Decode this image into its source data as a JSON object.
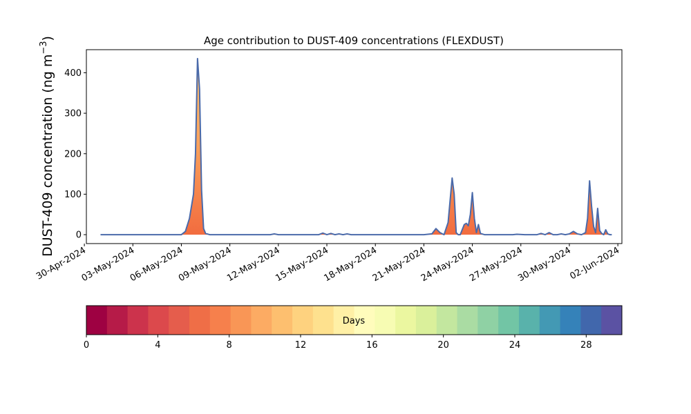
{
  "chart_data": {
    "type": "area",
    "title": "Age contribution to DUST-409 concentrations (FLEXDUST)",
    "xlabel": "",
    "ylabel": "DUST-409 concentration (ng m",
    "ylabel_sup": "−3",
    "ylabel_close": ")",
    "x_range": [
      "2024-04-30T03:00",
      "2024-06-02T06:00"
    ],
    "ylim": [
      -22,
      457
    ],
    "y_ticks": [
      0,
      100,
      200,
      300,
      400
    ],
    "x_ticks": [
      {
        "date": "2024-04-30",
        "label": "30-Apr-2024"
      },
      {
        "date": "2024-05-03",
        "label": "03-May-2024"
      },
      {
        "date": "2024-05-06",
        "label": "06-May-2024"
      },
      {
        "date": "2024-05-09",
        "label": "09-May-2024"
      },
      {
        "date": "2024-05-12",
        "label": "12-May-2024"
      },
      {
        "date": "2024-05-15",
        "label": "15-May-2024"
      },
      {
        "date": "2024-05-18",
        "label": "18-May-2024"
      },
      {
        "date": "2024-05-21",
        "label": "21-May-2024"
      },
      {
        "date": "2024-05-24",
        "label": "24-May-2024"
      },
      {
        "date": "2024-05-27",
        "label": "27-May-2024"
      },
      {
        "date": "2024-05-30",
        "label": "30-May-2024"
      },
      {
        "date": "2024-06-02",
        "label": "02-Jun-2024"
      }
    ],
    "series": [
      {
        "x": [
          "2024-05-01T00:00",
          "2024-05-06T00:00",
          "2024-05-06T06:00",
          "2024-05-06T12:00",
          "2024-05-06T18:00",
          "2024-05-06T21:00",
          "2024-05-07T00:00",
          "2024-05-07T03:00",
          "2024-05-07T06:00",
          "2024-05-07T09:00",
          "2024-05-07T12:00",
          "2024-05-07T18:00",
          "2024-05-08T00:00",
          "2024-05-11T12:00",
          "2024-05-11T18:00",
          "2024-05-12T00:00",
          "2024-05-14T12:00",
          "2024-05-14T18:00",
          "2024-05-15T00:00",
          "2024-05-15T06:00",
          "2024-05-15T12:00",
          "2024-05-15T18:00",
          "2024-05-16T00:00",
          "2024-05-16T06:00",
          "2024-05-16T12:00",
          "2024-05-17T00:00",
          "2024-05-21T00:00",
          "2024-05-21T12:00",
          "2024-05-21T18:00",
          "2024-05-22T00:00",
          "2024-05-22T06:00",
          "2024-05-22T12:00",
          "2024-05-22T18:00",
          "2024-05-22T21:00",
          "2024-05-23T00:00",
          "2024-05-23T03:00",
          "2024-05-23T06:00",
          "2024-05-23T12:00",
          "2024-05-23T15:00",
          "2024-05-23T18:00",
          "2024-05-23T21:00",
          "2024-05-24T00:00",
          "2024-05-24T03:00",
          "2024-05-24T06:00",
          "2024-05-24T09:00",
          "2024-05-24T12:00",
          "2024-05-24T18:00",
          "2024-05-25T00:00",
          "2024-05-26T12:00",
          "2024-05-26T18:00",
          "2024-05-27T06:00",
          "2024-05-28T00:00",
          "2024-05-28T06:00",
          "2024-05-28T12:00",
          "2024-05-28T18:00",
          "2024-05-29T00:00",
          "2024-05-29T06:00",
          "2024-05-29T12:00",
          "2024-05-29T18:00",
          "2024-05-30T00:00",
          "2024-05-30T06:00",
          "2024-05-30T12:00",
          "2024-05-30T18:00",
          "2024-05-31T00:00",
          "2024-05-31T03:00",
          "2024-05-31T06:00",
          "2024-05-31T09:00",
          "2024-05-31T12:00",
          "2024-05-31T15:00",
          "2024-05-31T18:00",
          "2024-05-31T21:00",
          "2024-06-01T00:00",
          "2024-06-01T03:00",
          "2024-06-01T06:00",
          "2024-06-01T09:00",
          "2024-06-01T12:00",
          "2024-06-01T15:00"
        ],
        "y": [
          0,
          0,
          8,
          40,
          100,
          200,
          435,
          360,
          110,
          15,
          3,
          0,
          0,
          0,
          2,
          0,
          0,
          4,
          0,
          3,
          0,
          2,
          0,
          2,
          0,
          0,
          0,
          2,
          15,
          5,
          0,
          30,
          140,
          100,
          5,
          0,
          0,
          25,
          28,
          22,
          50,
          104,
          40,
          5,
          25,
          3,
          0,
          0,
          0,
          1,
          0,
          0,
          3,
          0,
          5,
          0,
          0,
          2,
          0,
          2,
          8,
          2,
          0,
          5,
          40,
          133,
          70,
          20,
          5,
          65,
          10,
          3,
          0,
          12,
          2,
          0,
          0
        ]
      }
    ],
    "colorbar": {
      "label": "Days",
      "range": [
        0,
        30
      ],
      "ticks": [
        0,
        4,
        8,
        12,
        16,
        20,
        24,
        28
      ],
      "colors": [
        "#9e0142",
        "#b61b48",
        "#cc334c",
        "#dc494c",
        "#e55d4c",
        "#ef6e47",
        "#f6804c",
        "#f99656",
        "#fcab63",
        "#fdbf6f",
        "#fed27f",
        "#fee18e",
        "#fff0a6",
        "#fffcbc",
        "#f7fcb3",
        "#ebf7a0",
        "#daf09b",
        "#c3e79f",
        "#aadca3",
        "#8fd1a4",
        "#72c5a5",
        "#59b2ab",
        "#4399b4",
        "#3582b9",
        "#4167ac",
        "#5b52a3"
      ]
    },
    "colors": {
      "outline": "#4a6aaa",
      "fill_low": "#f26c3f",
      "fill_mid": "#f9a05a",
      "fill_high": "#fdc478"
    }
  }
}
